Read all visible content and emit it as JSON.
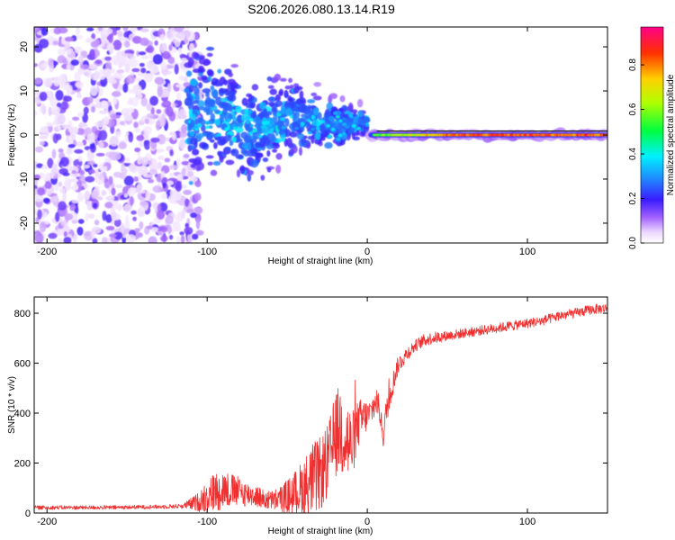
{
  "title": "S206.2026.080.13.14.R19",
  "chart_data": [
    {
      "type": "heatmap",
      "name": "spectrogram",
      "xlabel": "Height of straight line (km)",
      "ylabel": "Frequency (Hz)",
      "xlim": [
        -208,
        150
      ],
      "ylim": [
        -24.5,
        24.5
      ],
      "xticks": [
        -200,
        -100,
        0,
        100
      ],
      "yticks": [
        -20,
        -10,
        0,
        10,
        20
      ],
      "colorbar": {
        "label": "Normalized spectral amplitude",
        "range": [
          0,
          0.97
        ],
        "ticks": [
          0.0,
          0.2,
          0.4,
          0.6,
          0.8
        ]
      },
      "features": {
        "noise_region_km": [
          -208,
          -112
        ],
        "transition_region_km": [
          -112,
          0
        ],
        "carrier_line_km": [
          0,
          150
        ],
        "carrier_frequency_hz": 0
      }
    },
    {
      "type": "line",
      "name": "snr",
      "xlabel": "Height of straight line (km)",
      "ylabel": "SNR (10 * v/v)",
      "xlim": [
        -208,
        150
      ],
      "ylim": [
        0,
        865
      ],
      "xticks": [
        -200,
        -100,
        0,
        100
      ],
      "yticks": [
        0,
        200,
        400,
        600,
        800
      ],
      "color": "#f03030",
      "envelope": {
        "x": [
          -208,
          -160,
          -130,
          -115,
          -105,
          -100,
          -95,
          -90,
          -85,
          -80,
          -75,
          -70,
          -65,
          -60,
          -55,
          -50,
          -45,
          -40,
          -35,
          -30,
          -25,
          -22,
          -20,
          -18,
          -16,
          -14,
          -12,
          -10,
          -8,
          -6,
          -4,
          -2,
          0,
          2,
          4,
          6,
          8,
          10,
          12,
          14,
          16,
          18,
          20,
          25,
          30,
          35,
          40,
          50,
          60,
          70,
          80,
          90,
          100,
          110,
          120,
          130,
          140,
          150
        ],
        "mean": [
          22,
          22,
          25,
          28,
          45,
          70,
          85,
          95,
          90,
          85,
          75,
          70,
          55,
          50,
          55,
          65,
          80,
          100,
          130,
          150,
          200,
          260,
          310,
          330,
          340,
          320,
          280,
          260,
          300,
          350,
          370,
          380,
          390,
          400,
          430,
          450,
          400,
          300,
          420,
          470,
          520,
          570,
          600,
          640,
          670,
          690,
          700,
          710,
          720,
          730,
          740,
          750,
          760,
          770,
          790,
          800,
          815,
          820
        ],
        "spread": [
          8,
          8,
          8,
          10,
          40,
          70,
          80,
          80,
          70,
          60,
          50,
          45,
          40,
          40,
          50,
          70,
          90,
          120,
          150,
          150,
          150,
          160,
          170,
          180,
          200,
          200,
          180,
          150,
          120,
          100,
          90,
          80,
          60,
          60,
          60,
          60,
          50,
          40,
          60,
          60,
          50,
          40,
          35,
          30,
          25,
          25,
          25,
          20,
          20,
          20,
          20,
          20,
          20,
          20,
          20,
          20,
          20,
          20
        ]
      }
    }
  ]
}
